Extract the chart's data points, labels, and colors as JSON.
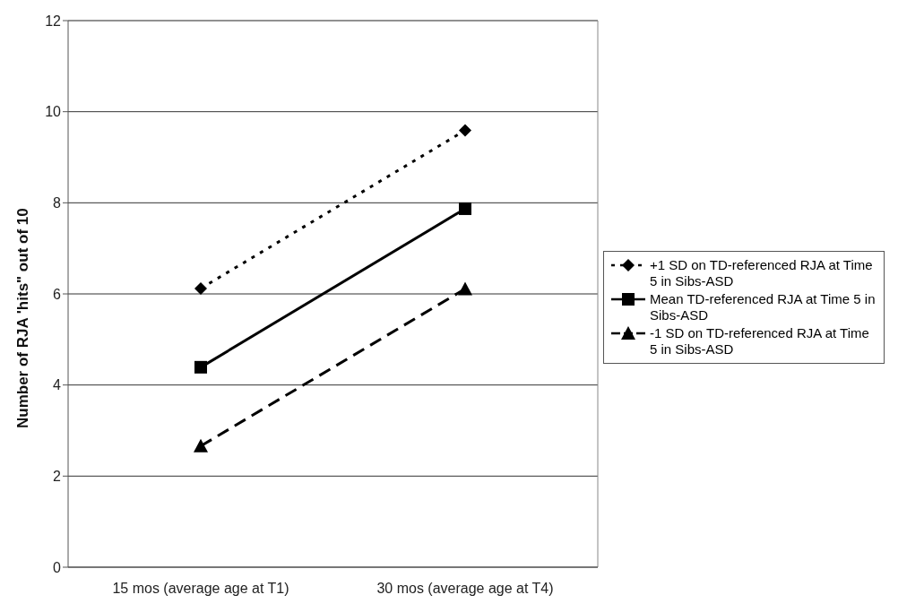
{
  "chart_data": {
    "type": "line",
    "ylabel": "Number of RJA 'hits\" out of 10",
    "categories": [
      "15 mos (average age at T1)",
      "30 mos (average age at T4)"
    ],
    "series": [
      {
        "name": "+1 SD on TD-referenced RJA at Time 5 in Sibs-ASD",
        "color": "#000000",
        "values": [
          6.12,
          9.59
        ],
        "marker": "diamond",
        "line_style": "dotted"
      },
      {
        "name": "Mean TD-referenced RJA at Time 5 in Sibs-ASD",
        "color": "#000000",
        "values": [
          4.39,
          7.87
        ],
        "marker": "square",
        "line_style": "solid"
      },
      {
        "name": "-1 SD on TD-referenced RJA at Time 5 in Sibs-ASD",
        "color": "#000000",
        "values": [
          2.66,
          6.11
        ],
        "marker": "triangle",
        "line_style": "dashed"
      }
    ],
    "ylim": [
      0,
      12
    ],
    "yticks": [
      0,
      2,
      4,
      6,
      8,
      10,
      12
    ],
    "grid": "y",
    "legend": "right"
  }
}
